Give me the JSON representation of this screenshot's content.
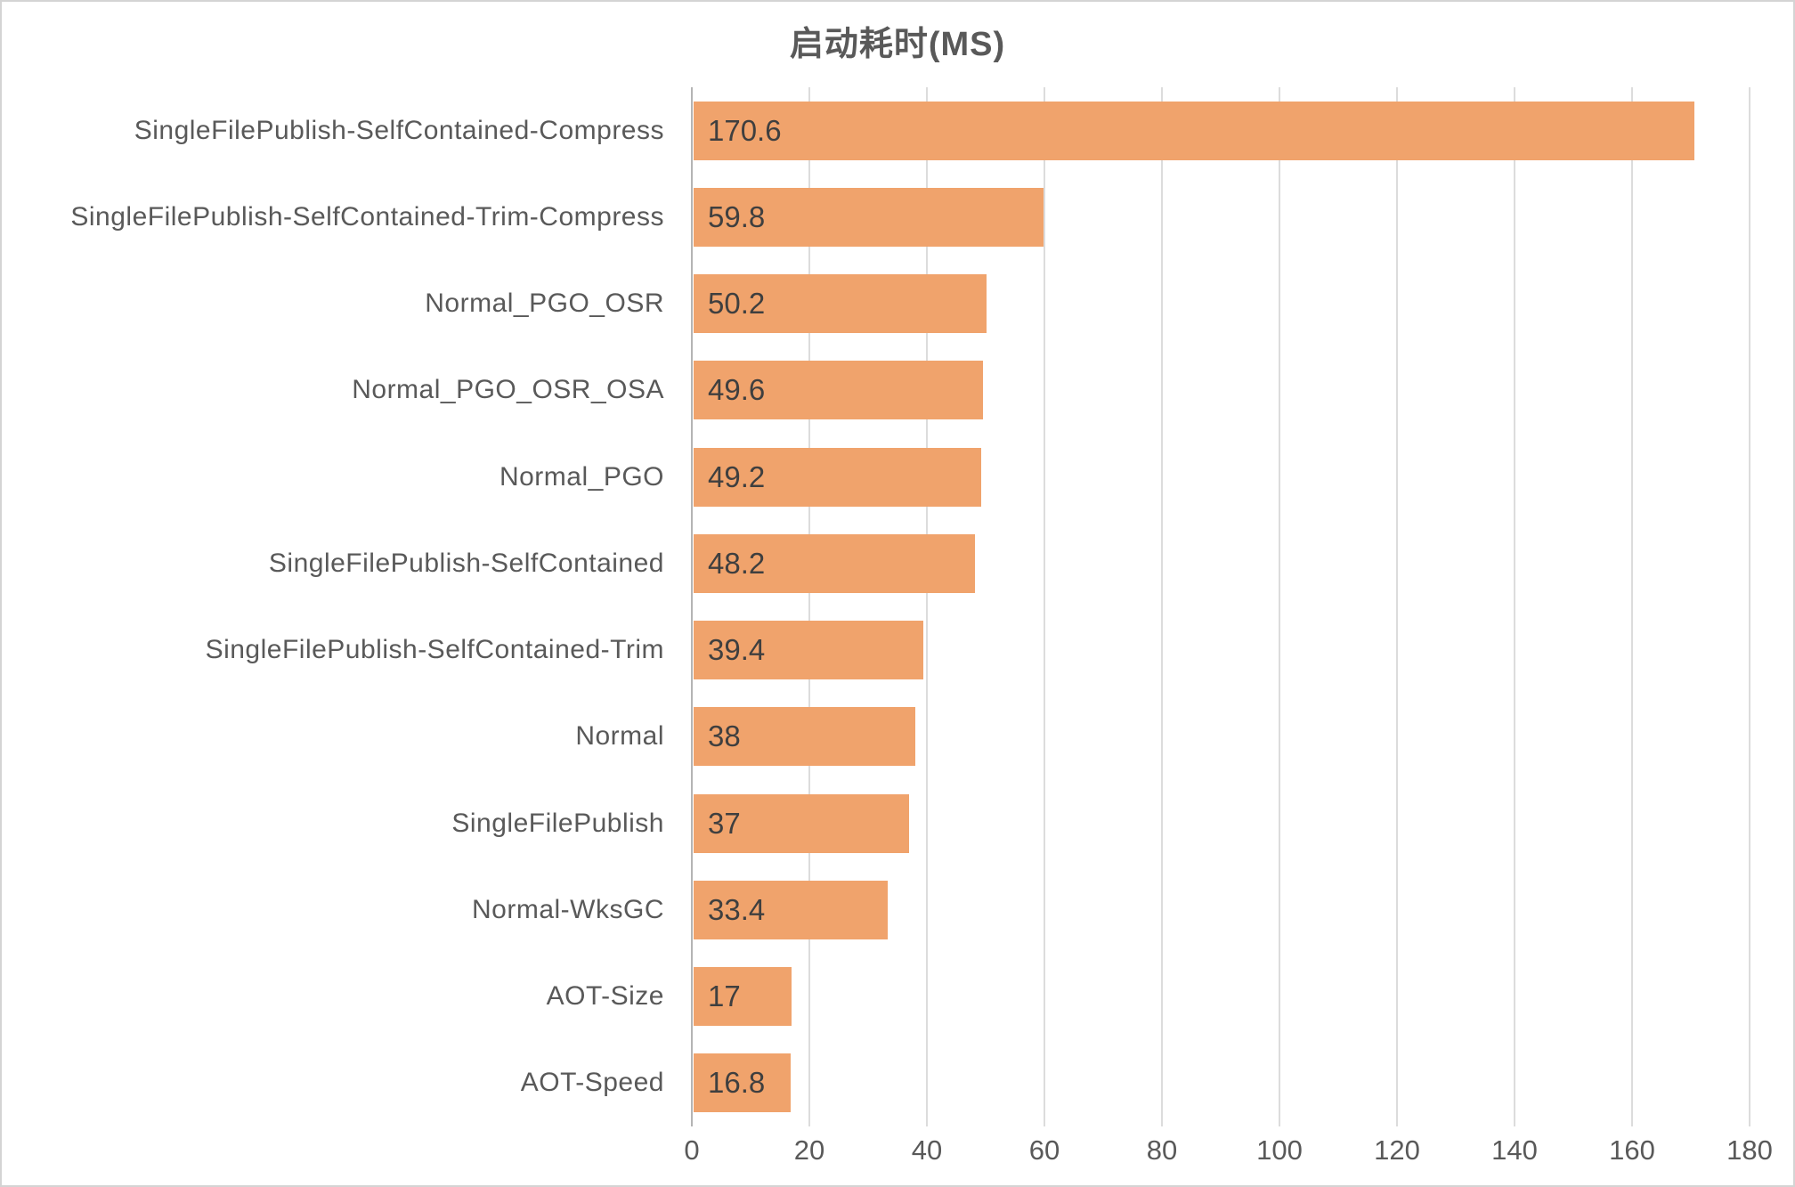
{
  "chart_data": {
    "type": "bar",
    "orientation": "horizontal",
    "title": "启动耗时(MS)",
    "categories": [
      "SingleFilePublish-SelfContained-Compress",
      "SingleFilePublish-SelfContained-Trim-Compress",
      "Normal_PGO_OSR",
      "Normal_PGO_OSR_OSA",
      "Normal_PGO",
      "SingleFilePublish-SelfContained",
      "SingleFilePublish-SelfContained-Trim",
      "Normal",
      "SingleFilePublish",
      "Normal-WksGC",
      "AOT-Size",
      "AOT-Speed"
    ],
    "values": [
      170.6,
      59.8,
      50.2,
      49.6,
      49.2,
      48.2,
      39.4,
      38,
      37,
      33.4,
      17,
      16.8
    ],
    "value_labels": [
      "170.6",
      "59.8",
      "50.2",
      "49.6",
      "49.2",
      "48.2",
      "39.4",
      "38",
      "37",
      "33.4",
      "17",
      "16.8"
    ],
    "xlabel": "",
    "ylabel": "",
    "xlim": [
      0,
      180
    ],
    "x_ticks": [
      0,
      20,
      40,
      60,
      80,
      100,
      120,
      140,
      160,
      180
    ],
    "grid": "vertical-gridlines-on",
    "legend": "none",
    "bar_color": "#f0a36c",
    "category_label_color": "#595959",
    "value_label_color": "#3f3f3f",
    "tick_label_color": "#595959",
    "title_color": "#595959",
    "gridline_color": "#dcdcdc",
    "axis_line_color": "#b4b4b4"
  }
}
